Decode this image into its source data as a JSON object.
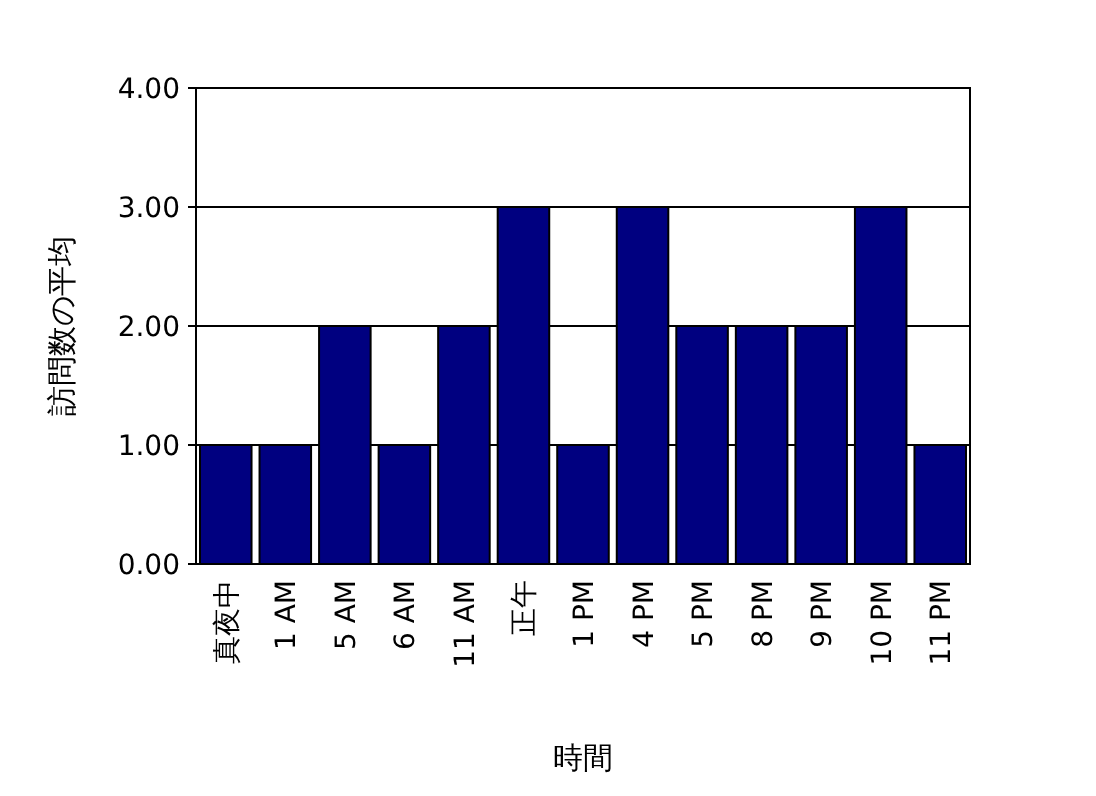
{
  "chart_data": {
    "type": "bar",
    "xlabel": "時間",
    "ylabel": "訪問数の平均",
    "categories": [
      "真夜中",
      "1 AM",
      "5 AM",
      "6 AM",
      "11 AM",
      "正午",
      "1 PM",
      "4 PM",
      "5 PM",
      "8 PM",
      "9 PM",
      "10 PM",
      "11 PM"
    ],
    "values": [
      1,
      1,
      2,
      1,
      2,
      3,
      1,
      3,
      2,
      2,
      2,
      3,
      1
    ],
    "color": "#000080",
    "ylim": [
      0,
      4
    ],
    "yticks": [
      {
        "value": 0,
        "label": "0.00"
      },
      {
        "value": 1,
        "label": "1.00"
      },
      {
        "value": 2,
        "label": "2.00"
      },
      {
        "value": 3,
        "label": "3.00"
      },
      {
        "value": 4,
        "label": "4.00"
      }
    ],
    "grid": "y"
  }
}
